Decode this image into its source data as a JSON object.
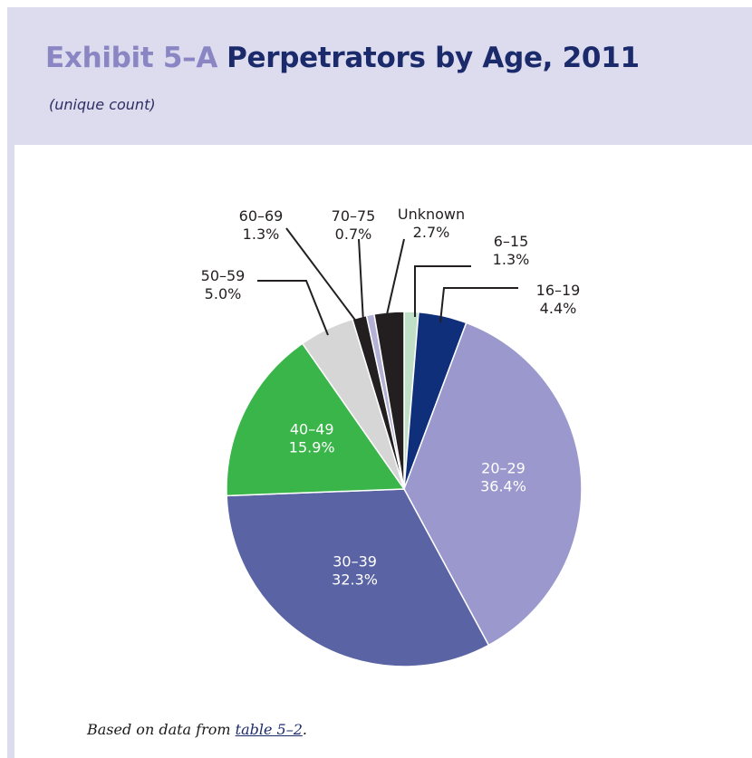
{
  "header": {
    "exhibit_label": "Exhibit 5–A",
    "title": "Perpetrators by Age, 2011",
    "subtitle": "(unique count)"
  },
  "footer": {
    "source_prefix": "Based on data from",
    "source_link": "table 5–2",
    "source_suffix": "."
  },
  "colors": {
    "panel_background": "#dcdcee",
    "exhibit_label": "#8a86c4",
    "title": "#1b2a6b"
  },
  "chart_data": {
    "type": "pie",
    "title": "Perpetrators by Age, 2011",
    "subtitle": "(unique count)",
    "start_angle_deg": 0,
    "direction": "clockwise",
    "slices": [
      {
        "label": "6–15",
        "percent": "1.3%",
        "value": 1.3,
        "color": "#bfe0c7",
        "text_color": "#231f20"
      },
      {
        "label": "16–19",
        "percent": "4.4%",
        "value": 4.4,
        "color": "#0f2f7a",
        "text_color": "#231f20"
      },
      {
        "label": "20–29",
        "percent": "36.4%",
        "value": 36.4,
        "color": "#9a98cc",
        "text_color": "#ffffff"
      },
      {
        "label": "30–39",
        "percent": "32.3%",
        "value": 32.3,
        "color": "#5a63a3",
        "text_color": "#ffffff"
      },
      {
        "label": "40–49",
        "percent": "15.9%",
        "value": 15.9,
        "color": "#3ab54a",
        "text_color": "#ffffff"
      },
      {
        "label": "50–59",
        "percent": "5.0%",
        "value": 5.0,
        "color": "#d6d6d6",
        "text_color": "#231f20"
      },
      {
        "label": "60–69",
        "percent": "1.3%",
        "value": 1.3,
        "color": "#231f20",
        "text_color": "#231f20"
      },
      {
        "label": "70–75",
        "percent": "0.7%",
        "value": 0.7,
        "color": "#b3b2d6",
        "text_color": "#231f20"
      },
      {
        "label": "Unknown",
        "percent": "2.7%",
        "value": 2.7,
        "color": "#231f20",
        "text_color": "#231f20"
      }
    ]
  }
}
